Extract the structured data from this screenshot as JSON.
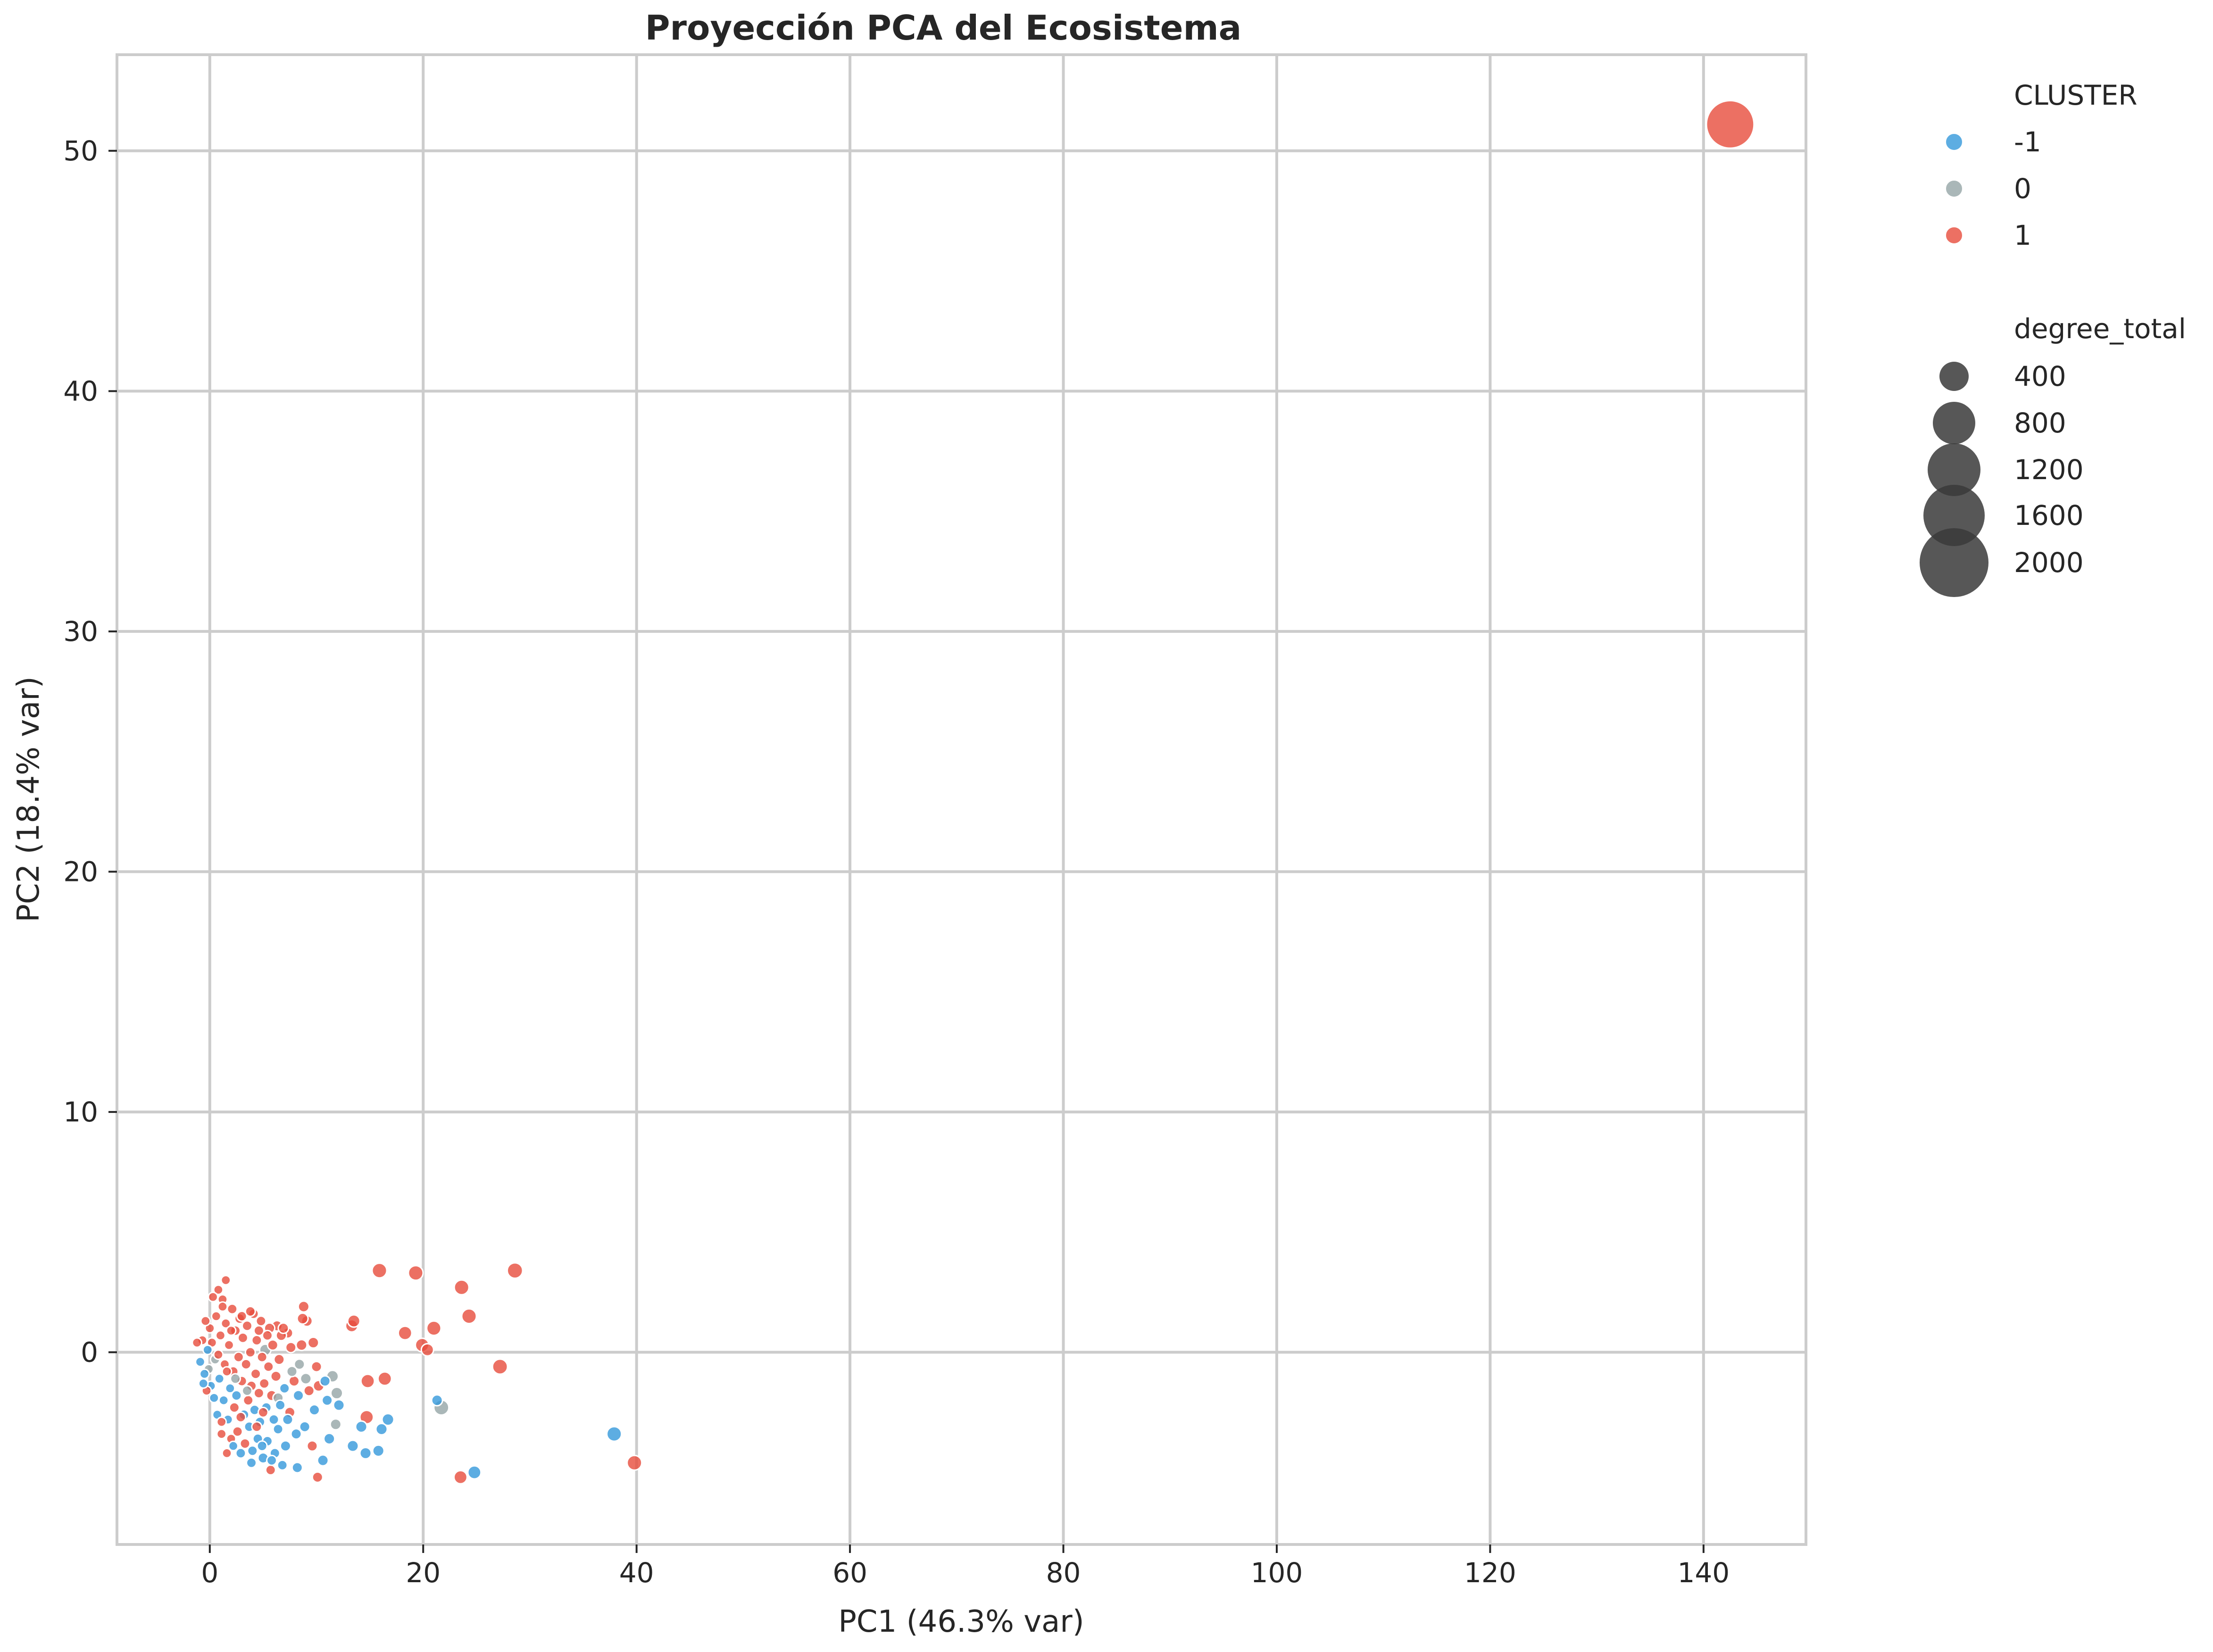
{
  "chart_data": {
    "type": "scatter",
    "title": "Proyección PCA del Ecosistema",
    "xlabel": "PC1 (46.3% var)",
    "ylabel": "PC2 (18.4% var)",
    "xlim": [
      -8.7,
      149.6
    ],
    "ylim": [
      -8.0,
      54.0
    ],
    "xticks": [
      0,
      20,
      40,
      60,
      80,
      100,
      120,
      140
    ],
    "yticks": [
      0,
      10,
      20,
      30,
      40,
      50
    ],
    "grid": true,
    "legend": {
      "placement": "outside-right",
      "hue_title": "CLUSTER",
      "hue_entries": [
        {
          "label": "-1",
          "color": "#3498db"
        },
        {
          "label": "0",
          "color": "#95a5a6"
        },
        {
          "label": "1",
          "color": "#e74c3c"
        }
      ],
      "size_title": "degree_total",
      "size_entries": [
        {
          "label": "400",
          "value": 400
        },
        {
          "label": "800",
          "value": 800
        },
        {
          "label": "1200",
          "value": 1200
        },
        {
          "label": "1600",
          "value": 1600
        },
        {
          "label": "2000",
          "value": 2000
        }
      ]
    },
    "colors": {
      "-1": "#3498db",
      "0": "#95a5a6",
      "1": "#e74c3c"
    },
    "size_variable": "degree_total",
    "points": [
      {
        "x": 142.5,
        "y": 51.1,
        "cluster": "1",
        "size": 2100
      },
      {
        "x": 39.8,
        "y": -4.6,
        "cluster": "1",
        "size": 200
      },
      {
        "x": 37.9,
        "y": -3.4,
        "cluster": "-1",
        "size": 200
      },
      {
        "x": 28.6,
        "y": 3.4,
        "cluster": "1",
        "size": 220
      },
      {
        "x": 27.2,
        "y": -0.6,
        "cluster": "1",
        "size": 210
      },
      {
        "x": 24.3,
        "y": 1.5,
        "cluster": "1",
        "size": 200
      },
      {
        "x": 23.6,
        "y": 2.7,
        "cluster": "1",
        "size": 200
      },
      {
        "x": 23.5,
        "y": -5.2,
        "cluster": "1",
        "size": 160
      },
      {
        "x": 24.8,
        "y": -5.0,
        "cluster": "-1",
        "size": 160
      },
      {
        "x": 21.7,
        "y": -2.3,
        "cluster": "0",
        "size": 210
      },
      {
        "x": 21.3,
        "y": -2.0,
        "cluster": "-1",
        "size": 110
      },
      {
        "x": 21.0,
        "y": 1.0,
        "cluster": "1",
        "size": 190
      },
      {
        "x": 20.4,
        "y": 0.1,
        "cluster": "1",
        "size": 140
      },
      {
        "x": 19.9,
        "y": 0.3,
        "cluster": "1",
        "size": 170
      },
      {
        "x": 19.3,
        "y": 3.3,
        "cluster": "1",
        "size": 200
      },
      {
        "x": 18.3,
        "y": 0.8,
        "cluster": "1",
        "size": 170
      },
      {
        "x": 16.7,
        "y": -2.8,
        "cluster": "-1",
        "size": 130
      },
      {
        "x": 16.1,
        "y": -3.2,
        "cluster": "-1",
        "size": 120
      },
      {
        "x": 16.4,
        "y": -1.1,
        "cluster": "1",
        "size": 170
      },
      {
        "x": 15.8,
        "y": -4.1,
        "cluster": "-1",
        "size": 120
      },
      {
        "x": 15.9,
        "y": 3.4,
        "cluster": "1",
        "size": 200
      },
      {
        "x": 14.8,
        "y": -1.2,
        "cluster": "1",
        "size": 170
      },
      {
        "x": 14.7,
        "y": -2.7,
        "cluster": "1",
        "size": 170
      },
      {
        "x": 14.6,
        "y": -4.2,
        "cluster": "-1",
        "size": 120
      },
      {
        "x": 14.2,
        "y": -3.1,
        "cluster": "-1",
        "size": 120
      },
      {
        "x": 13.4,
        "y": -3.9,
        "cluster": "-1",
        "size": 120
      },
      {
        "x": 13.3,
        "y": 1.1,
        "cluster": "1",
        "size": 140
      },
      {
        "x": 13.5,
        "y": 1.3,
        "cluster": "1",
        "size": 140
      },
      {
        "x": 11.9,
        "y": -1.7,
        "cluster": "0",
        "size": 130
      },
      {
        "x": 11.8,
        "y": -3.0,
        "cluster": "0",
        "size": 110
      },
      {
        "x": 11.5,
        "y": -1.0,
        "cluster": "0",
        "size": 130
      },
      {
        "x": 11.2,
        "y": -3.6,
        "cluster": "-1",
        "size": 110
      },
      {
        "x": 11.0,
        "y": -2.0,
        "cluster": "-1",
        "size": 100
      },
      {
        "x": 10.6,
        "y": -4.5,
        "cluster": "-1",
        "size": 110
      },
      {
        "x": 10.8,
        "y": -1.2,
        "cluster": "-1",
        "size": 100
      },
      {
        "x": 10.2,
        "y": -1.4,
        "cluster": "1",
        "size": 110
      },
      {
        "x": 10.1,
        "y": -5.2,
        "cluster": "1",
        "size": 100
      },
      {
        "x": 10.0,
        "y": -0.6,
        "cluster": "1",
        "size": 100
      },
      {
        "x": 9.8,
        "y": -2.4,
        "cluster": "-1",
        "size": 100
      },
      {
        "x": 9.7,
        "y": 0.4,
        "cluster": "1",
        "size": 110
      },
      {
        "x": 9.6,
        "y": -3.9,
        "cluster": "1",
        "size": 100
      },
      {
        "x": 9.3,
        "y": -1.6,
        "cluster": "1",
        "size": 100
      },
      {
        "x": 9.1,
        "y": 1.3,
        "cluster": "1",
        "size": 110
      },
      {
        "x": 8.8,
        "y": 1.9,
        "cluster": "1",
        "size": 110
      },
      {
        "x": 8.6,
        "y": 0.3,
        "cluster": "1",
        "size": 110
      },
      {
        "x": 8.7,
        "y": 1.4,
        "cluster": "1",
        "size": 110
      },
      {
        "x": 8.4,
        "y": -0.5,
        "cluster": "0",
        "size": 100
      },
      {
        "x": 8.3,
        "y": -1.8,
        "cluster": "-1",
        "size": 100
      },
      {
        "x": 8.2,
        "y": -4.8,
        "cluster": "-1",
        "size": 100
      },
      {
        "x": 8.1,
        "y": -3.4,
        "cluster": "-1",
        "size": 100
      },
      {
        "x": 7.9,
        "y": -1.2,
        "cluster": "1",
        "size": 100
      },
      {
        "x": 7.7,
        "y": -0.8,
        "cluster": "0",
        "size": 100
      },
      {
        "x": 7.5,
        "y": -2.5,
        "cluster": "1",
        "size": 100
      },
      {
        "x": 7.3,
        "y": 0.8,
        "cluster": "1",
        "size": 100
      },
      {
        "x": 7.1,
        "y": -3.9,
        "cluster": "-1",
        "size": 100
      },
      {
        "x": 7.0,
        "y": -1.5,
        "cluster": "-1",
        "size": 90
      },
      {
        "x": 6.8,
        "y": -4.7,
        "cluster": "-1",
        "size": 90
      },
      {
        "x": 6.7,
        "y": 0.7,
        "cluster": "1",
        "size": 100
      },
      {
        "x": 6.6,
        "y": -2.2,
        "cluster": "-1",
        "size": 90
      },
      {
        "x": 6.5,
        "y": -0.3,
        "cluster": "1",
        "size": 100
      },
      {
        "x": 6.4,
        "y": -3.2,
        "cluster": "-1",
        "size": 90
      },
      {
        "x": 6.3,
        "y": 1.1,
        "cluster": "1",
        "size": 100
      },
      {
        "x": 6.2,
        "y": -1.0,
        "cluster": "1",
        "size": 100
      },
      {
        "x": 6.1,
        "y": -4.2,
        "cluster": "-1",
        "size": 90
      },
      {
        "x": 6.0,
        "y": -2.8,
        "cluster": "-1",
        "size": 90
      },
      {
        "x": 5.9,
        "y": 0.3,
        "cluster": "1",
        "size": 100
      },
      {
        "x": 5.8,
        "y": -1.8,
        "cluster": "1",
        "size": 100
      },
      {
        "x": 5.7,
        "y": -4.9,
        "cluster": "1",
        "size": 90
      },
      {
        "x": 5.6,
        "y": 1.0,
        "cluster": "1",
        "size": 100
      },
      {
        "x": 5.5,
        "y": -0.6,
        "cluster": "1",
        "size": 90
      },
      {
        "x": 5.4,
        "y": -3.7,
        "cluster": "-1",
        "size": 90
      },
      {
        "x": 5.3,
        "y": -2.3,
        "cluster": "-1",
        "size": 90
      },
      {
        "x": 5.2,
        "y": 0.1,
        "cluster": "0",
        "size": 120
      },
      {
        "x": 5.1,
        "y": -1.3,
        "cluster": "1",
        "size": 90
      },
      {
        "x": 5.0,
        "y": -4.4,
        "cluster": "-1",
        "size": 100
      },
      {
        "x": 4.9,
        "y": -0.2,
        "cluster": "1",
        "size": 90
      },
      {
        "x": 4.8,
        "y": 1.3,
        "cluster": "1",
        "size": 90
      },
      {
        "x": 4.7,
        "y": -2.9,
        "cluster": "-1",
        "size": 90
      },
      {
        "x": 4.6,
        "y": -1.7,
        "cluster": "1",
        "size": 90
      },
      {
        "x": 4.5,
        "y": -3.6,
        "cluster": "-1",
        "size": 90
      },
      {
        "x": 4.4,
        "y": 0.5,
        "cluster": "1",
        "size": 90
      },
      {
        "x": 4.3,
        "y": -0.9,
        "cluster": "1",
        "size": 90
      },
      {
        "x": 4.2,
        "y": -2.4,
        "cluster": "-1",
        "size": 90
      },
      {
        "x": 4.1,
        "y": 1.6,
        "cluster": "1",
        "size": 90
      },
      {
        "x": 4.0,
        "y": -4.1,
        "cluster": "-1",
        "size": 90
      },
      {
        "x": 3.9,
        "y": -1.4,
        "cluster": "1",
        "size": 90
      },
      {
        "x": 3.8,
        "y": 0.0,
        "cluster": "1",
        "size": 90
      },
      {
        "x": 3.7,
        "y": -3.1,
        "cluster": "-1",
        "size": 90
      },
      {
        "x": 3.6,
        "y": -2.0,
        "cluster": "1",
        "size": 90
      },
      {
        "x": 3.5,
        "y": 1.1,
        "cluster": "1",
        "size": 90
      },
      {
        "x": 3.4,
        "y": -0.5,
        "cluster": "1",
        "size": 90
      },
      {
        "x": 3.3,
        "y": -3.8,
        "cluster": "1",
        "size": 90
      },
      {
        "x": 3.2,
        "y": -2.6,
        "cluster": "-1",
        "size": 90
      },
      {
        "x": 3.1,
        "y": 0.6,
        "cluster": "1",
        "size": 90
      },
      {
        "x": 3.0,
        "y": -1.2,
        "cluster": "1",
        "size": 90
      },
      {
        "x": 2.9,
        "y": -4.2,
        "cluster": "-1",
        "size": 90
      },
      {
        "x": 2.8,
        "y": 1.4,
        "cluster": "1",
        "size": 90
      },
      {
        "x": 2.7,
        "y": -0.2,
        "cluster": "1",
        "size": 90
      },
      {
        "x": 2.6,
        "y": -3.3,
        "cluster": "1",
        "size": 90
      },
      {
        "x": 2.5,
        "y": -1.8,
        "cluster": "-1",
        "size": 90
      },
      {
        "x": 2.4,
        "y": 0.9,
        "cluster": "1",
        "size": 90
      },
      {
        "x": 2.3,
        "y": -2.3,
        "cluster": "1",
        "size": 90
      },
      {
        "x": 2.2,
        "y": -0.8,
        "cluster": "1",
        "size": 90
      },
      {
        "x": 2.1,
        "y": 1.8,
        "cluster": "1",
        "size": 90
      },
      {
        "x": 2.0,
        "y": -3.6,
        "cluster": "1",
        "size": 80
      },
      {
        "x": 1.9,
        "y": -1.5,
        "cluster": "-1",
        "size": 80
      },
      {
        "x": 1.8,
        "y": 0.3,
        "cluster": "1",
        "size": 80
      },
      {
        "x": 1.7,
        "y": -2.8,
        "cluster": "-1",
        "size": 80
      },
      {
        "x": 1.6,
        "y": -4.2,
        "cluster": "1",
        "size": 80
      },
      {
        "x": 1.5,
        "y": 1.2,
        "cluster": "1",
        "size": 80
      },
      {
        "x": 1.5,
        "y": 3.0,
        "cluster": "1",
        "size": 80
      },
      {
        "x": 1.4,
        "y": -0.5,
        "cluster": "1",
        "size": 80
      },
      {
        "x": 1.3,
        "y": -2.0,
        "cluster": "-1",
        "size": 80
      },
      {
        "x": 1.2,
        "y": 2.2,
        "cluster": "1",
        "size": 80
      },
      {
        "x": 1.1,
        "y": -3.4,
        "cluster": "1",
        "size": 80
      },
      {
        "x": 1.0,
        "y": 0.7,
        "cluster": "1",
        "size": 80
      },
      {
        "x": 0.9,
        "y": -1.1,
        "cluster": "-1",
        "size": 80
      },
      {
        "x": 0.8,
        "y": 2.6,
        "cluster": "1",
        "size": 80
      },
      {
        "x": 0.7,
        "y": -2.6,
        "cluster": "-1",
        "size": 80
      },
      {
        "x": 0.6,
        "y": 1.5,
        "cluster": "1",
        "size": 80
      },
      {
        "x": 0.5,
        "y": -0.3,
        "cluster": "0",
        "size": 80
      },
      {
        "x": 0.4,
        "y": -1.9,
        "cluster": "-1",
        "size": 80
      },
      {
        "x": 0.3,
        "y": 2.3,
        "cluster": "1",
        "size": 80
      },
      {
        "x": 0.2,
        "y": 0.4,
        "cluster": "1",
        "size": 80
      },
      {
        "x": 0.1,
        "y": -1.4,
        "cluster": "-1",
        "size": 80
      },
      {
        "x": 0.0,
        "y": 1.0,
        "cluster": "1",
        "size": 80
      },
      {
        "x": -0.1,
        "y": -0.7,
        "cluster": "0",
        "size": 80
      },
      {
        "x": -0.2,
        "y": 0.1,
        "cluster": "-1",
        "size": 80
      },
      {
        "x": -0.3,
        "y": -1.6,
        "cluster": "1",
        "size": 80
      },
      {
        "x": -0.4,
        "y": 1.3,
        "cluster": "1",
        "size": 80
      },
      {
        "x": -0.5,
        "y": -0.9,
        "cluster": "-1",
        "size": 80
      },
      {
        "x": -0.7,
        "y": 0.5,
        "cluster": "1",
        "size": 80
      },
      {
        "x": -0.9,
        "y": -0.4,
        "cluster": "-1",
        "size": 80
      },
      {
        "x": -1.2,
        "y": 0.4,
        "cluster": "1",
        "size": 80
      },
      {
        "x": -0.6,
        "y": -1.3,
        "cluster": "-1",
        "size": 80
      },
      {
        "x": 3.0,
        "y": 1.5,
        "cluster": "1",
        "size": 90
      },
      {
        "x": 3.8,
        "y": 1.7,
        "cluster": "1",
        "size": 90
      },
      {
        "x": 4.6,
        "y": 0.9,
        "cluster": "1",
        "size": 90
      },
      {
        "x": 5.4,
        "y": 0.7,
        "cluster": "1",
        "size": 90
      },
      {
        "x": 6.9,
        "y": 1.0,
        "cluster": "1",
        "size": 100
      },
      {
        "x": 7.6,
        "y": 0.2,
        "cluster": "1",
        "size": 100
      },
      {
        "x": 2.4,
        "y": -1.1,
        "cluster": "0",
        "size": 90
      },
      {
        "x": 3.5,
        "y": -1.6,
        "cluster": "0",
        "size": 90
      },
      {
        "x": 6.4,
        "y": -1.9,
        "cluster": "0",
        "size": 100
      },
      {
        "x": 9.0,
        "y": -1.1,
        "cluster": "0",
        "size": 110
      },
      {
        "x": 1.2,
        "y": 1.9,
        "cluster": "1",
        "size": 80
      },
      {
        "x": 2.0,
        "y": 0.9,
        "cluster": "1",
        "size": 80
      },
      {
        "x": 0.8,
        "y": -0.1,
        "cluster": "1",
        "size": 80
      },
      {
        "x": 1.6,
        "y": -0.8,
        "cluster": "1",
        "size": 80
      },
      {
        "x": 2.9,
        "y": -2.7,
        "cluster": "1",
        "size": 90
      },
      {
        "x": 4.4,
        "y": -3.1,
        "cluster": "1",
        "size": 90
      },
      {
        "x": 5.0,
        "y": -2.5,
        "cluster": "1",
        "size": 90
      },
      {
        "x": 7.3,
        "y": -2.8,
        "cluster": "-1",
        "size": 100
      },
      {
        "x": 8.9,
        "y": -3.1,
        "cluster": "-1",
        "size": 100
      },
      {
        "x": 12.1,
        "y": -2.2,
        "cluster": "-1",
        "size": 110
      },
      {
        "x": 4.9,
        "y": -3.9,
        "cluster": "-1",
        "size": 90
      },
      {
        "x": 5.8,
        "y": -4.5,
        "cluster": "-1",
        "size": 90
      },
      {
        "x": 3.9,
        "y": -4.6,
        "cluster": "-1",
        "size": 90
      },
      {
        "x": 2.2,
        "y": -3.9,
        "cluster": "-1",
        "size": 80
      },
      {
        "x": 1.1,
        "y": -2.9,
        "cluster": "1",
        "size": 80
      }
    ]
  }
}
